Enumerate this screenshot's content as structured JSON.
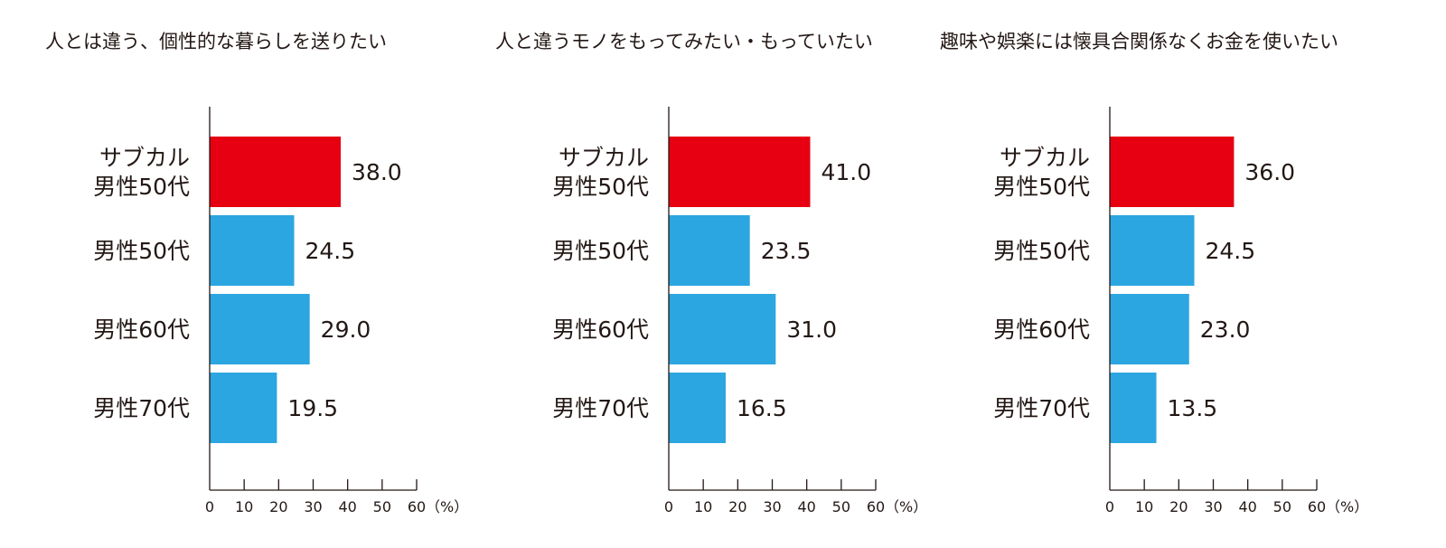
{
  "chart_data": [
    {
      "type": "bar",
      "orientation": "horizontal",
      "title": "人とは違う、個性的な暮らしを送りたい",
      "categories": [
        "サブカル\n男性50代",
        "男性50代",
        "男性60代",
        "男性70代"
      ],
      "values": [
        38.0,
        24.5,
        29.0,
        19.5
      ],
      "xlim": [
        0,
        60
      ],
      "xticks": [
        0,
        10,
        20,
        30,
        40,
        50,
        60
      ],
      "xunit": "（%）",
      "highlight_index": 0
    },
    {
      "type": "bar",
      "orientation": "horizontal",
      "title": "人と違うモノをもってみたい・もっていたい",
      "categories": [
        "サブカル\n男性50代",
        "男性50代",
        "男性60代",
        "男性70代"
      ],
      "values": [
        41.0,
        23.5,
        31.0,
        16.5
      ],
      "xlim": [
        0,
        60
      ],
      "xticks": [
        0,
        10,
        20,
        30,
        40,
        50,
        60
      ],
      "xunit": "（%）",
      "highlight_index": 0
    },
    {
      "type": "bar",
      "orientation": "horizontal",
      "title": "趣味や娯楽には懐具合関係なくお金を使いたい",
      "categories": [
        "サブカル\n男性50代",
        "男性50代",
        "男性60代",
        "男性70代"
      ],
      "values": [
        36.0,
        24.5,
        23.0,
        13.5
      ],
      "xlim": [
        0,
        60
      ],
      "xticks": [
        0,
        10,
        20,
        30,
        40,
        50,
        60
      ],
      "xunit": "（%）",
      "highlight_index": 0
    }
  ],
  "colors": {
    "highlight": "#e60012",
    "bar": "#2ca6e0",
    "axis": "#231815"
  }
}
